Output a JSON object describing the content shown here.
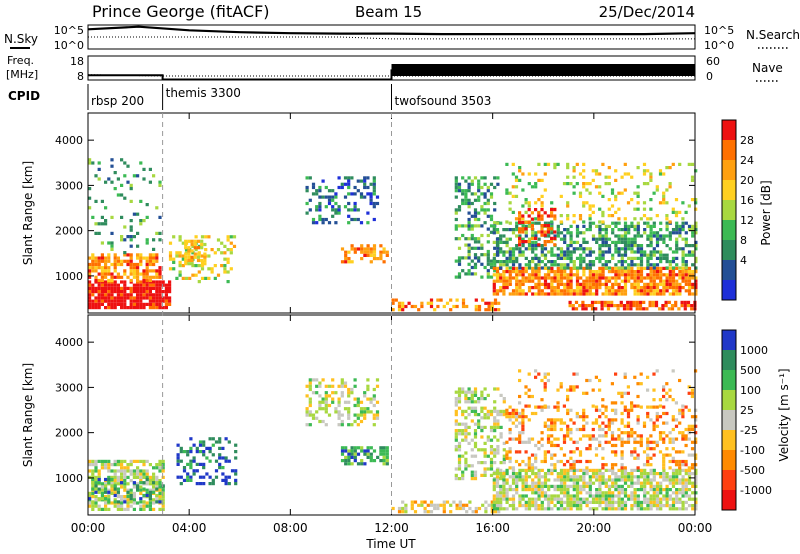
{
  "header": {
    "station": "Prince George (fitACF)",
    "beam": "Beam 15",
    "date": "25/Dec/2014"
  },
  "chart_data": [
    {
      "type": "line",
      "panel": "nsky-nsearch",
      "left_labels": [
        "N.Sky"
      ],
      "right_labels": [
        "N.Search"
      ],
      "yticks_left": [
        "10^5",
        "10^0"
      ],
      "yticks_right": [
        "10^5",
        "10^0"
      ],
      "series": [
        {
          "style": "solid",
          "x": [
            0,
            2,
            4,
            6,
            8,
            10,
            12,
            14,
            16,
            18,
            20,
            22,
            24
          ],
          "values": [
            0.82,
            0.93,
            0.78,
            0.7,
            0.66,
            0.64,
            0.64,
            0.62,
            0.62,
            0.62,
            0.62,
            0.62,
            0.66
          ]
        },
        {
          "style": "dotted",
          "x": [
            0,
            2,
            4,
            6,
            8,
            10,
            12,
            14,
            16,
            18,
            20,
            22,
            24
          ],
          "values": [
            0.5,
            0.5,
            0.5,
            0.5,
            0.5,
            0.5,
            0.42,
            0.42,
            0.42,
            0.42,
            0.42,
            0.42,
            0.42
          ]
        }
      ]
    },
    {
      "type": "line",
      "panel": "freq-nave",
      "left_labels": [
        "Freq.",
        "[MHz]"
      ],
      "right_labels": [
        "Nave"
      ],
      "yticks_left": [
        "18",
        "8"
      ],
      "yticks_right": [
        "60",
        "0"
      ],
      "series": [
        {
          "style": "solid",
          "x": [
            0,
            2.95,
            2.95,
            12,
            12,
            24
          ],
          "values": [
            10,
            10,
            8.2,
            8.2,
            12,
            12
          ]
        },
        {
          "style": "dotted",
          "x": [
            0,
            2.95,
            12,
            24
          ],
          "values": [
            4,
            3,
            3,
            3
          ]
        }
      ]
    },
    {
      "type": "table",
      "panel": "cpid",
      "label": "CPID",
      "modes": [
        {
          "name": "rbsp 200",
          "start": 0
        },
        {
          "name": "themis 3300",
          "start": 2.95
        },
        {
          "name": "twofsound 3503",
          "start": 12
        }
      ]
    },
    {
      "type": "heatmap",
      "panel": "power",
      "ylabel": "Slant Range [km]",
      "colorbar_label": "Power [dB]",
      "colorbar_ticks": [
        "28",
        "24",
        "20",
        "16",
        "12",
        "8",
        "4"
      ],
      "colorbar_values": [
        28,
        24,
        20,
        16,
        12,
        8,
        4
      ],
      "colorbar_colors": [
        "#ee1111",
        "#ff7000",
        "#ffa010",
        "#ffd020",
        "#a8d840",
        "#3cba54",
        "#2f8c5d",
        "#234f95",
        "#1e2fd8"
      ],
      "yticks": [
        "4000",
        "3000",
        "2000",
        "1000"
      ],
      "ytick_values": [
        4000,
        3000,
        2000,
        1000
      ],
      "ylim": [
        180,
        4600
      ],
      "xlim": [
        0,
        24
      ],
      "regions": [
        {
          "t0": 0,
          "t1": 3.2,
          "r0": 300,
          "r1": 900,
          "level": 0,
          "d": 0.85
        },
        {
          "t0": 0,
          "t1": 2.8,
          "r0": 900,
          "r1": 1500,
          "level": 2,
          "d": 0.65
        },
        {
          "t0": 0,
          "t1": 2.8,
          "r0": 1500,
          "r1": 3600,
          "level": 6,
          "d": 0.12
        },
        {
          "t0": 3.2,
          "t1": 5.8,
          "r0": 900,
          "r1": 1900,
          "level": 4,
          "d": 0.3
        },
        {
          "t0": 3.8,
          "t1": 4.6,
          "r0": 1300,
          "r1": 1800,
          "level": 3,
          "d": 0.6
        },
        {
          "t0": 8.6,
          "t1": 11.5,
          "r0": 2200,
          "r1": 3200,
          "level": 7,
          "d": 0.35
        },
        {
          "t0": 10.0,
          "t1": 11.8,
          "r0": 1300,
          "r1": 1700,
          "level": 2,
          "d": 0.55
        },
        {
          "t0": 12.0,
          "t1": 16.2,
          "r0": 250,
          "r1": 500,
          "level": 2,
          "d": 0.45
        },
        {
          "t0": 14.5,
          "t1": 16.2,
          "r0": 1000,
          "r1": 3200,
          "level": 6,
          "d": 0.4
        },
        {
          "t0": 16.0,
          "t1": 24,
          "r0": 600,
          "r1": 1200,
          "level": 2,
          "d": 0.8
        },
        {
          "t0": 16.0,
          "t1": 24,
          "r0": 1200,
          "r1": 2200,
          "level": 6,
          "d": 0.55
        },
        {
          "t0": 16.5,
          "t1": 24,
          "r0": 2200,
          "r1": 3500,
          "level": 4,
          "d": 0.18
        },
        {
          "t0": 17.0,
          "t1": 18.5,
          "r0": 1700,
          "r1": 2500,
          "level": 1,
          "d": 0.5
        },
        {
          "t0": 19.0,
          "t1": 24,
          "r0": 300,
          "r1": 450,
          "level": 1,
          "d": 0.7
        }
      ]
    },
    {
      "type": "heatmap",
      "panel": "velocity",
      "ylabel": "Slant Range [km]",
      "colorbar_label": "Velocity [m s⁻¹]",
      "colorbar_ticks": [
        "1000",
        "500",
        "100",
        "25",
        "-25",
        "-100",
        "-500",
        "-1000"
      ],
      "colorbar_values": [
        1000,
        500,
        100,
        25,
        -25,
        -100,
        -500,
        -1000
      ],
      "colorbar_colors": [
        "#2038c8",
        "#2f8c5d",
        "#3cba54",
        "#a8d840",
        "#c8c8c0",
        "#ffc020",
        "#ff8a00",
        "#ff4010",
        "#ee1111"
      ],
      "yticks": [
        "4000",
        "3000",
        "2000",
        "1000"
      ],
      "ytick_values": [
        4000,
        3000,
        2000,
        1000
      ],
      "ylim": [
        180,
        4600
      ],
      "xlim": [
        0,
        24
      ],
      "xticks": [
        "00:00",
        "04:00",
        "08:00",
        "12:00",
        "16:00",
        "20:00",
        "00:00"
      ],
      "xtick_values": [
        0,
        4,
        8,
        12,
        16,
        20,
        24
      ],
      "xlabel": "Time UT",
      "regions": [
        {
          "t0": 0,
          "t1": 3.0,
          "r0": 300,
          "r1": 1400,
          "level": 4,
          "d": 0.7
        },
        {
          "t0": 0,
          "t1": 3.0,
          "r0": 500,
          "r1": 1000,
          "level": 2,
          "d": 0.3
        },
        {
          "t0": 3.5,
          "t1": 5.8,
          "r0": 900,
          "r1": 1900,
          "level": 1,
          "d": 0.35
        },
        {
          "t0": 8.6,
          "t1": 11.5,
          "r0": 2200,
          "r1": 3200,
          "level": 4,
          "d": 0.4
        },
        {
          "t0": 10.0,
          "t1": 11.8,
          "r0": 1300,
          "r1": 1700,
          "level": 2,
          "d": 0.6
        },
        {
          "t0": 12.0,
          "t1": 16.2,
          "r0": 250,
          "r1": 500,
          "level": 5,
          "d": 0.5
        },
        {
          "t0": 14.5,
          "t1": 16.5,
          "r0": 1000,
          "r1": 3000,
          "level": 4,
          "d": 0.45
        },
        {
          "t0": 16.0,
          "t1": 24,
          "r0": 300,
          "r1": 1200,
          "level": 4,
          "d": 0.75
        },
        {
          "t0": 16.5,
          "t1": 24,
          "r0": 1200,
          "r1": 2600,
          "level": 6,
          "d": 0.35
        },
        {
          "t0": 17.0,
          "t1": 24,
          "r0": 2600,
          "r1": 3400,
          "level": 6,
          "d": 0.12
        }
      ]
    }
  ]
}
